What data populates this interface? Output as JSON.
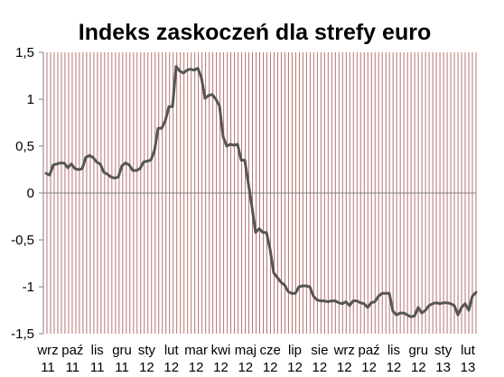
{
  "chart_data": {
    "type": "line",
    "title": "Indeks zaskoczeń dla strefy euro",
    "xlabel": "",
    "ylabel": "",
    "ylim": [
      -1.5,
      1.5
    ],
    "y_ticks": [
      "1,5",
      "1",
      "0,5",
      "0",
      "-0,5",
      "-1",
      "-1,5"
    ],
    "y_tick_values": [
      1.5,
      1.0,
      0.5,
      0.0,
      -0.5,
      -1.0,
      -1.5
    ],
    "x_ticks": [
      {
        "month": "wrz",
        "year": "11"
      },
      {
        "month": "paź",
        "year": "11"
      },
      {
        "month": "lis",
        "year": "11"
      },
      {
        "month": "gru",
        "year": "11"
      },
      {
        "month": "sty",
        "year": "12"
      },
      {
        "month": "lut",
        "year": "12"
      },
      {
        "month": "mar",
        "year": "12"
      },
      {
        "month": "kwi",
        "year": "12"
      },
      {
        "month": "maj",
        "year": "12"
      },
      {
        "month": "cze",
        "year": "12"
      },
      {
        "month": "lip",
        "year": "12"
      },
      {
        "month": "sie",
        "year": "12"
      },
      {
        "month": "wrz",
        "year": "12"
      },
      {
        "month": "paź",
        "year": "12"
      },
      {
        "month": "lis",
        "year": "12"
      },
      {
        "month": "gru",
        "year": "12"
      },
      {
        "month": "sty",
        "year": "13"
      },
      {
        "month": "lut",
        "year": "13"
      }
    ],
    "grid": "vertical",
    "colors": {
      "line": "#555555",
      "grid": "#b87373",
      "axis": "#808080"
    },
    "series": [
      {
        "values": [
          0.21,
          0.19,
          0.3,
          0.31,
          0.32,
          0.32,
          0.27,
          0.31,
          0.26,
          0.25,
          0.26,
          0.38,
          0.4,
          0.38,
          0.33,
          0.31,
          0.22,
          0.2,
          0.17,
          0.16,
          0.17,
          0.29,
          0.32,
          0.3,
          0.24,
          0.24,
          0.26,
          0.33,
          0.34,
          0.35,
          0.45,
          0.69,
          0.69,
          0.77,
          0.92,
          0.92,
          1.35,
          1.3,
          1.28,
          1.31,
          1.32,
          1.31,
          1.33,
          1.23,
          1.01,
          1.04,
          1.05,
          1.0,
          0.93,
          0.6,
          0.5,
          0.52,
          0.51,
          0.52,
          0.35,
          0.35,
          0.1,
          -0.15,
          -0.42,
          -0.38,
          -0.42,
          -0.42,
          -0.6,
          -0.85,
          -0.9,
          -0.95,
          -0.98,
          -1.05,
          -1.07,
          -1.07,
          -1.0,
          -0.99,
          -0.99,
          -1.0,
          -1.1,
          -1.14,
          -1.15,
          -1.15,
          -1.16,
          -1.15,
          -1.15,
          -1.17,
          -1.18,
          -1.16,
          -1.2,
          -1.15,
          -1.15,
          -1.17,
          -1.18,
          -1.22,
          -1.17,
          -1.16,
          -1.1,
          -1.07,
          -1.07,
          -1.07,
          -1.26,
          -1.3,
          -1.28,
          -1.28,
          -1.3,
          -1.32,
          -1.31,
          -1.22,
          -1.28,
          -1.25,
          -1.2,
          -1.18,
          -1.17,
          -1.18,
          -1.17,
          -1.17,
          -1.18,
          -1.2,
          -1.3,
          -1.22,
          -1.18,
          -1.25,
          -1.1,
          -1.06
        ]
      }
    ]
  }
}
